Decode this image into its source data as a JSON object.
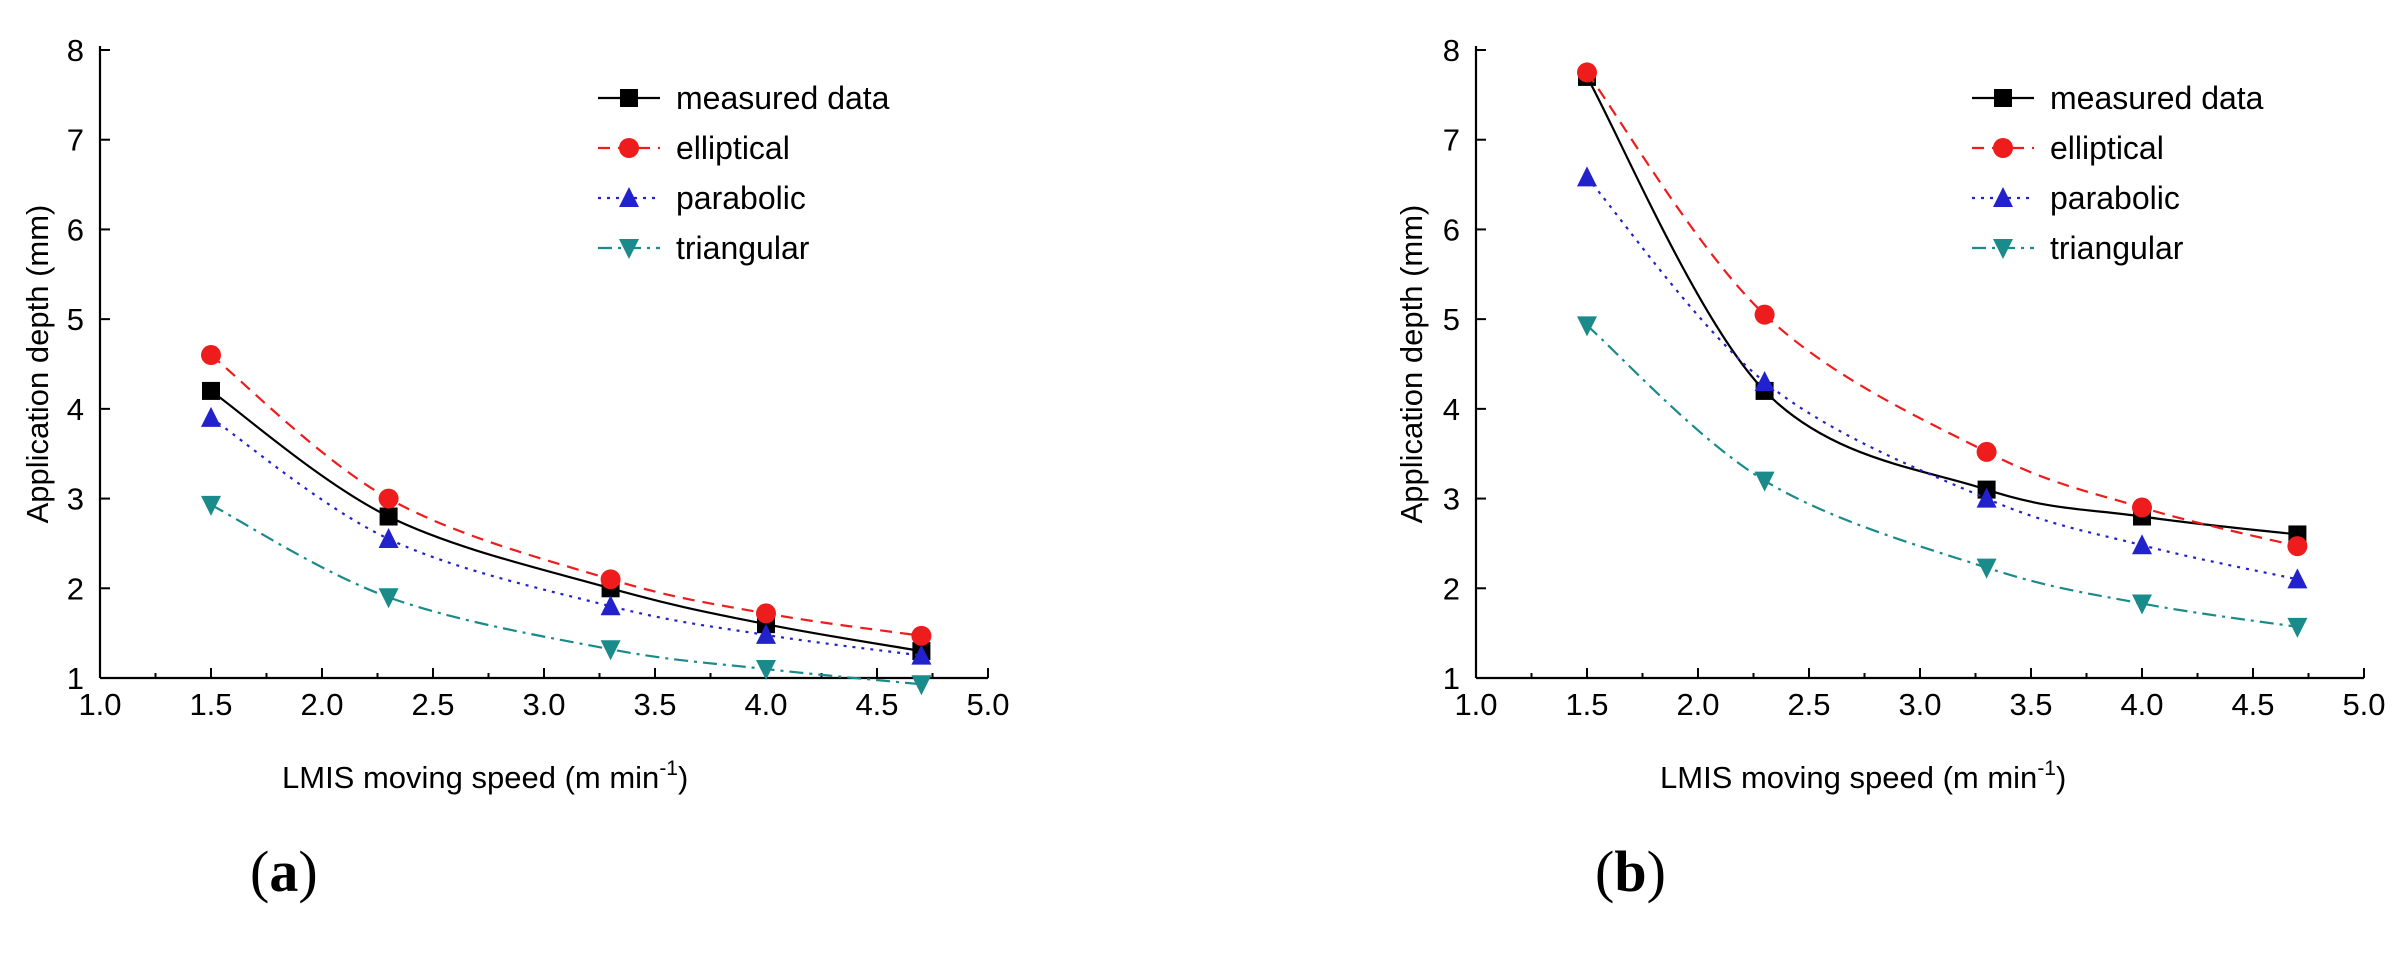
{
  "chart_data": [
    {
      "type": "line",
      "panel_label": "a",
      "x": [
        1.5,
        2.3,
        3.3,
        4.0,
        4.7
      ],
      "xlim": [
        1.0,
        5.0
      ],
      "ylim": [
        1,
        8
      ],
      "xticks": [
        "1.0",
        "1.5",
        "2.0",
        "2.5",
        "3.0",
        "3.5",
        "4.0",
        "4.5",
        "5.0"
      ],
      "yticks": [
        "1",
        "2",
        "3",
        "4",
        "5",
        "6",
        "7",
        "8"
      ],
      "xlabel": "LMIS moving  speed (m min",
      "xlabel_sup": "-1",
      "xlabel_end": ")",
      "ylabel": "Application depth (mm)",
      "legend_position": "top-right",
      "series": [
        {
          "name": "measured data",
          "values": [
            4.2,
            2.8,
            2.0,
            1.6,
            1.3
          ],
          "color": "#000000",
          "dash": "",
          "marker": "square"
        },
        {
          "name": "elliptical",
          "values": [
            4.6,
            3.0,
            2.1,
            1.72,
            1.47
          ],
          "color": "#ee1c1c",
          "dash": "12,8",
          "marker": "circle"
        },
        {
          "name": "parabolic",
          "values": [
            3.9,
            2.55,
            1.8,
            1.48,
            1.25
          ],
          "color": "#2222cc",
          "dash": "3,6",
          "marker": "triangle-up"
        },
        {
          "name": "triangular",
          "values": [
            2.93,
            1.9,
            1.32,
            1.1,
            0.93
          ],
          "color": "#1a8a8a",
          "dash": "14,6,3,6",
          "marker": "triangle-down"
        }
      ]
    },
    {
      "type": "line",
      "panel_label": "b",
      "x": [
        1.5,
        2.3,
        3.3,
        4.0,
        4.7
      ],
      "xlim": [
        1.0,
        5.0
      ],
      "ylim": [
        1,
        8
      ],
      "xticks": [
        "1.0",
        "1.5",
        "2.0",
        "2.5",
        "3.0",
        "3.5",
        "4.0",
        "4.5",
        "5.0"
      ],
      "yticks": [
        "1",
        "2",
        "3",
        "4",
        "5",
        "6",
        "7",
        "8"
      ],
      "xlabel": "LMIS moving speed (m min",
      "xlabel_sup": "-1",
      "xlabel_end": ")",
      "ylabel": "Application depth (mm)",
      "legend_position": "top-right",
      "series": [
        {
          "name": "measured data",
          "values": [
            7.7,
            4.2,
            3.1,
            2.8,
            2.6
          ],
          "color": "#000000",
          "dash": "",
          "marker": "square"
        },
        {
          "name": "elliptical",
          "values": [
            7.75,
            5.05,
            3.52,
            2.9,
            2.47
          ],
          "color": "#ee1c1c",
          "dash": "12,8",
          "marker": "circle"
        },
        {
          "name": "parabolic",
          "values": [
            6.58,
            4.3,
            3.0,
            2.48,
            2.1
          ],
          "color": "#2222cc",
          "dash": "3,6",
          "marker": "triangle-up"
        },
        {
          "name": "triangular",
          "values": [
            4.93,
            3.2,
            2.23,
            1.83,
            1.57
          ],
          "color": "#1a8a8a",
          "dash": "14,6,3,6",
          "marker": "triangle-down"
        }
      ]
    }
  ]
}
